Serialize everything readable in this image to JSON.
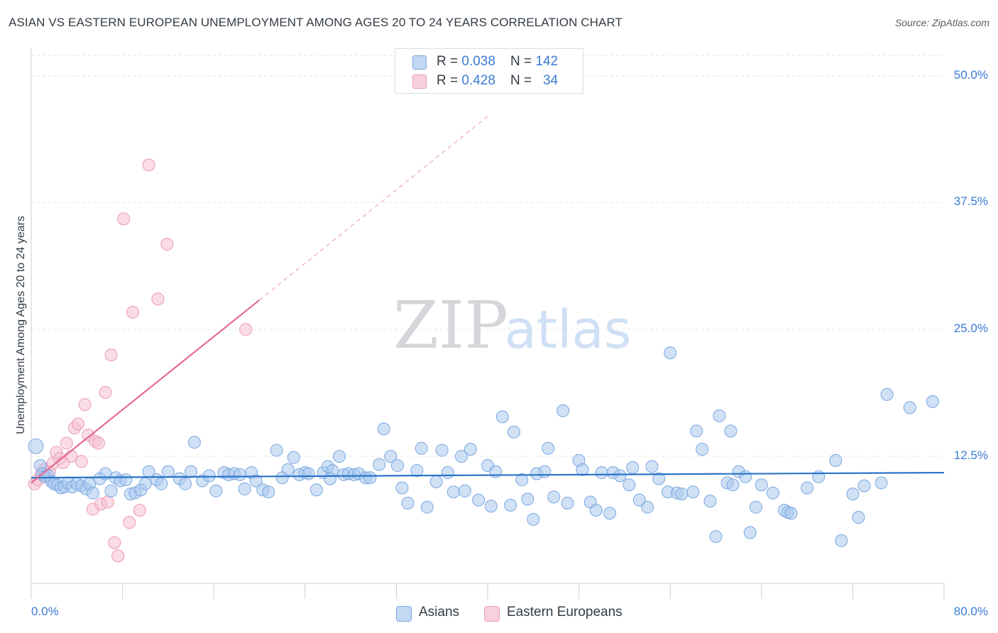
{
  "header": {
    "title": "ASIAN VS EASTERN EUROPEAN UNEMPLOYMENT AMONG AGES 20 TO 24 YEARS CORRELATION CHART",
    "source": "Source: ZipAtlas.com"
  },
  "watermark": {
    "zip": "ZIP",
    "atlas": "atlas"
  },
  "legend": {
    "rows": [
      {
        "r_label": "R = ",
        "r_value": "0.038",
        "n_label": "N = ",
        "n_value": "142"
      },
      {
        "r_label": "R = ",
        "r_value": "0.428",
        "n_label": "N = ",
        "n_value": "34"
      }
    ]
  },
  "bottom_legend": {
    "asians": "Asians",
    "eastern": "Eastern Europeans"
  },
  "colors": {
    "asian_fill": "#a9c8ef",
    "asian_stroke": "#7aa7e0",
    "asian_line": "#2a74c9",
    "eastern_fill": "#f6bfd1",
    "eastern_stroke": "#ea9ab5",
    "eastern_line": "#e46a93",
    "tick_text": "#3a7bd5",
    "grid": "#e3e6ea"
  },
  "chart_data": {
    "type": "scatter",
    "title": "ASIAN VS EASTERN EUROPEAN UNEMPLOYMENT AMONG AGES 20 TO 24 YEARS CORRELATION CHART",
    "xlabel": "",
    "ylabel": "Unemployment Among Ages 20 to 24 years",
    "xlim": [
      0,
      80
    ],
    "ylim": [
      0,
      52
    ],
    "x_tick_labels": [
      "0.0%",
      "80.0%"
    ],
    "y_ticks": [
      12.5,
      25.0,
      37.5,
      50.0
    ],
    "y_tick_labels": [
      "12.5%",
      "25.0%",
      "37.5%",
      "50.0%"
    ],
    "grid": true,
    "legend_position": "top-center",
    "series": [
      {
        "name": "Asians",
        "r": 0.038,
        "n": 142,
        "trend": {
          "x0": 0,
          "y0": 10.4,
          "x1": 80,
          "y1": 10.9
        },
        "points": [
          [
            0.4,
            13.5
          ],
          [
            0.8,
            11.6
          ],
          [
            1.0,
            10.8
          ],
          [
            1.2,
            10.5
          ],
          [
            1.5,
            10.6
          ],
          [
            1.8,
            10.0
          ],
          [
            2.0,
            9.8
          ],
          [
            2.3,
            9.7
          ],
          [
            2.6,
            9.4
          ],
          [
            2.9,
            9.5
          ],
          [
            3.2,
            9.9
          ],
          [
            3.6,
            9.5
          ],
          [
            4.0,
            9.8
          ],
          [
            4.4,
            9.6
          ],
          [
            4.8,
            9.3
          ],
          [
            5.1,
            9.8
          ],
          [
            5.4,
            8.9
          ],
          [
            6.0,
            10.3
          ],
          [
            6.5,
            10.8
          ],
          [
            7.0,
            9.1
          ],
          [
            7.4,
            10.4
          ],
          [
            7.8,
            10.1
          ],
          [
            8.3,
            10.2
          ],
          [
            8.7,
            8.8
          ],
          [
            9.1,
            8.9
          ],
          [
            9.6,
            9.2
          ],
          [
            10.0,
            9.8
          ],
          [
            10.3,
            11.0
          ],
          [
            11.0,
            10.2
          ],
          [
            11.4,
            9.8
          ],
          [
            12.0,
            11.0
          ],
          [
            13.0,
            10.3
          ],
          [
            13.5,
            9.8
          ],
          [
            14.0,
            11.0
          ],
          [
            14.3,
            13.9
          ],
          [
            15.0,
            10.1
          ],
          [
            15.6,
            10.6
          ],
          [
            16.2,
            9.1
          ],
          [
            16.9,
            10.9
          ],
          [
            17.3,
            10.7
          ],
          [
            17.8,
            10.8
          ],
          [
            18.3,
            10.7
          ],
          [
            18.7,
            9.3
          ],
          [
            19.3,
            10.9
          ],
          [
            19.7,
            10.1
          ],
          [
            20.3,
            9.2
          ],
          [
            20.8,
            9.0
          ],
          [
            21.5,
            13.1
          ],
          [
            22.0,
            10.4
          ],
          [
            22.5,
            11.2
          ],
          [
            23.0,
            12.4
          ],
          [
            23.5,
            10.7
          ],
          [
            24.0,
            10.9
          ],
          [
            24.3,
            10.8
          ],
          [
            25.0,
            9.2
          ],
          [
            25.6,
            10.9
          ],
          [
            26.0,
            11.5
          ],
          [
            26.4,
            11.1
          ],
          [
            27.0,
            12.5
          ],
          [
            27.4,
            10.7
          ],
          [
            27.8,
            10.8
          ],
          [
            28.3,
            10.7
          ],
          [
            28.7,
            10.8
          ],
          [
            29.3,
            10.4
          ],
          [
            29.7,
            10.4
          ],
          [
            30.5,
            11.7
          ],
          [
            30.9,
            15.2
          ],
          [
            31.5,
            12.5
          ],
          [
            32.1,
            11.6
          ],
          [
            32.5,
            9.4
          ],
          [
            33.0,
            7.9
          ],
          [
            33.8,
            11.1
          ],
          [
            34.2,
            13.3
          ],
          [
            34.7,
            7.5
          ],
          [
            35.5,
            10.0
          ],
          [
            36.0,
            13.1
          ],
          [
            36.5,
            10.9
          ],
          [
            37.0,
            9.0
          ],
          [
            37.7,
            12.5
          ],
          [
            38.0,
            9.1
          ],
          [
            38.5,
            13.2
          ],
          [
            39.2,
            8.2
          ],
          [
            40.0,
            11.6
          ],
          [
            40.3,
            7.6
          ],
          [
            40.7,
            11.0
          ],
          [
            41.3,
            16.4
          ],
          [
            42.0,
            7.7
          ],
          [
            42.3,
            14.9
          ],
          [
            43.0,
            10.2
          ],
          [
            43.5,
            8.3
          ],
          [
            44.0,
            6.3
          ],
          [
            44.3,
            10.8
          ],
          [
            45.0,
            11.0
          ],
          [
            45.3,
            13.3
          ],
          [
            45.8,
            8.5
          ],
          [
            46.6,
            17.0
          ],
          [
            47.0,
            7.9
          ],
          [
            48.0,
            12.1
          ],
          [
            48.3,
            11.2
          ],
          [
            49.0,
            8.0
          ],
          [
            49.5,
            7.2
          ],
          [
            50.0,
            10.9
          ],
          [
            50.7,
            6.9
          ],
          [
            51.0,
            10.9
          ],
          [
            51.6,
            10.6
          ],
          [
            52.4,
            9.7
          ],
          [
            52.7,
            11.4
          ],
          [
            53.3,
            8.2
          ],
          [
            54.0,
            7.5
          ],
          [
            54.4,
            11.5
          ],
          [
            55.0,
            10.3
          ],
          [
            55.8,
            9.0
          ],
          [
            56.0,
            22.7
          ],
          [
            56.6,
            8.9
          ],
          [
            57.0,
            8.8
          ],
          [
            58.0,
            9.0
          ],
          [
            58.3,
            15.0
          ],
          [
            58.8,
            13.2
          ],
          [
            59.5,
            8.1
          ],
          [
            60.0,
            4.6
          ],
          [
            60.3,
            16.5
          ],
          [
            61.0,
            9.9
          ],
          [
            61.3,
            15.0
          ],
          [
            62.0,
            11.0
          ],
          [
            62.6,
            10.5
          ],
          [
            63.0,
            5.0
          ],
          [
            63.5,
            7.5
          ],
          [
            64.0,
            9.7
          ],
          [
            65.0,
            8.9
          ],
          [
            66.0,
            7.2
          ],
          [
            66.3,
            7.0
          ],
          [
            66.6,
            6.9
          ],
          [
            68.0,
            9.4
          ],
          [
            69.0,
            10.5
          ],
          [
            70.5,
            12.1
          ],
          [
            72.0,
            8.8
          ],
          [
            72.5,
            6.5
          ],
          [
            73.0,
            9.6
          ],
          [
            74.5,
            9.9
          ],
          [
            75.0,
            18.6
          ],
          [
            77.0,
            17.3
          ],
          [
            79.0,
            17.9
          ],
          [
            71.0,
            4.2
          ],
          [
            61.5,
            9.7
          ],
          [
            26.2,
            10.3
          ]
        ]
      },
      {
        "name": "Eastern Europeans",
        "r": 0.428,
        "n": 34,
        "trend": {
          "x0": 0,
          "y0": 9.9,
          "x1": 20.0,
          "y1": 27.9
        },
        "trend_dashed_to": {
          "x": 40.0,
          "y": 46.0
        },
        "points": [
          [
            0.3,
            9.8
          ],
          [
            0.6,
            10.2
          ],
          [
            0.9,
            10.8
          ],
          [
            1.1,
            11.2
          ],
          [
            1.3,
            10.5
          ],
          [
            1.6,
            11.0
          ],
          [
            1.9,
            11.8
          ],
          [
            2.2,
            12.9
          ],
          [
            2.5,
            12.3
          ],
          [
            2.8,
            11.9
          ],
          [
            3.1,
            13.8
          ],
          [
            3.5,
            12.5
          ],
          [
            3.8,
            15.3
          ],
          [
            4.1,
            15.7
          ],
          [
            4.4,
            12.0
          ],
          [
            4.7,
            17.6
          ],
          [
            5.0,
            14.6
          ],
          [
            5.4,
            7.3
          ],
          [
            5.6,
            14.0
          ],
          [
            5.9,
            13.8
          ],
          [
            6.1,
            7.8
          ],
          [
            6.5,
            18.8
          ],
          [
            6.7,
            8.0
          ],
          [
            7.0,
            22.5
          ],
          [
            7.3,
            4.0
          ],
          [
            7.6,
            2.7
          ],
          [
            8.1,
            35.9
          ],
          [
            8.6,
            6.0
          ],
          [
            8.9,
            26.7
          ],
          [
            9.5,
            7.2
          ],
          [
            10.3,
            41.2
          ],
          [
            11.1,
            28.0
          ],
          [
            11.9,
            33.4
          ],
          [
            18.8,
            25.0
          ]
        ]
      }
    ]
  }
}
